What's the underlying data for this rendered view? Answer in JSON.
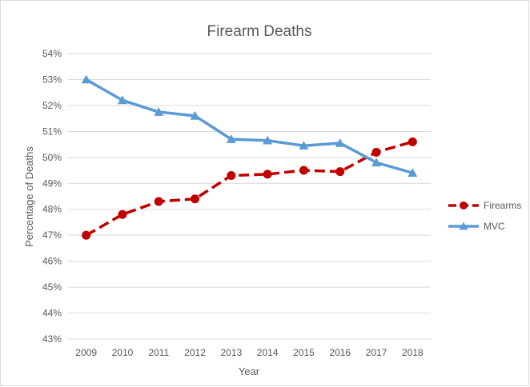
{
  "chart_data": {
    "type": "line",
    "title": "Firearm Deaths",
    "xlabel": "Year",
    "ylabel": "Percentage of Deaths",
    "categories": [
      "2009",
      "2010",
      "2011",
      "2012",
      "2013",
      "2014",
      "2015",
      "2016",
      "2017",
      "2018"
    ],
    "ylim": [
      43,
      54
    ],
    "yticks": [
      "43%",
      "44%",
      "45%",
      "46%",
      "47%",
      "48%",
      "49%",
      "50%",
      "51%",
      "52%",
      "53%",
      "54%"
    ],
    "grid": true,
    "legend_position": "right",
    "series": [
      {
        "name": "Firearms",
        "color": "#c00000",
        "line_style": "dashed",
        "marker": "circle",
        "values": [
          47.0,
          47.8,
          48.3,
          48.4,
          49.3,
          49.35,
          49.5,
          49.45,
          50.2,
          50.6
        ]
      },
      {
        "name": "MVC",
        "color": "#5b9bd5",
        "line_style": "solid",
        "marker": "triangle",
        "values": [
          53.0,
          52.2,
          51.75,
          51.6,
          50.7,
          50.65,
          50.45,
          50.55,
          49.8,
          49.4
        ]
      }
    ]
  }
}
